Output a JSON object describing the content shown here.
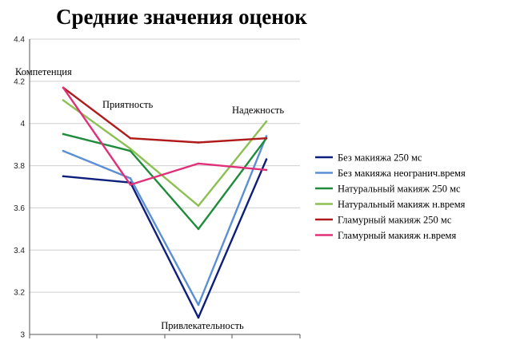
{
  "chart_data": {
    "type": "line",
    "title": "Средние значения оценок",
    "categories": [
      "Компетенция",
      "Приятность",
      "Привлекательность",
      "Надежность"
    ],
    "ylim": [
      3,
      4.4
    ],
    "yticks": [
      "3",
      "3.2",
      "3.4",
      "3.6",
      "3.8",
      "4",
      "4.2",
      "4.4"
    ],
    "grid": true,
    "legend_position": "right",
    "series": [
      {
        "name": "Без макияжа 250 мс",
        "color": "#0d1f7a",
        "values": [
          3.75,
          3.72,
          3.08,
          3.83
        ]
      },
      {
        "name": "Без макияжа неогранич.время",
        "color": "#5b8fd4",
        "values": [
          3.87,
          3.74,
          3.14,
          3.94
        ]
      },
      {
        "name": "Натуральный макияж 250 мс",
        "color": "#1e8c3a",
        "values": [
          3.95,
          3.87,
          3.5,
          3.93
        ]
      },
      {
        "name": "Натуральный макияж н.время",
        "color": "#8cc152",
        "values": [
          4.11,
          3.88,
          3.61,
          4.01
        ]
      },
      {
        "name": "Гламурный макияж 250 мс",
        "color": "#b01a1a",
        "values": [
          4.17,
          3.93,
          3.91,
          3.93
        ]
      },
      {
        "name": "Гламурный макияж н.время",
        "color": "#e0307a",
        "values": [
          4.17,
          3.71,
          3.81,
          3.78
        ]
      }
    ]
  }
}
